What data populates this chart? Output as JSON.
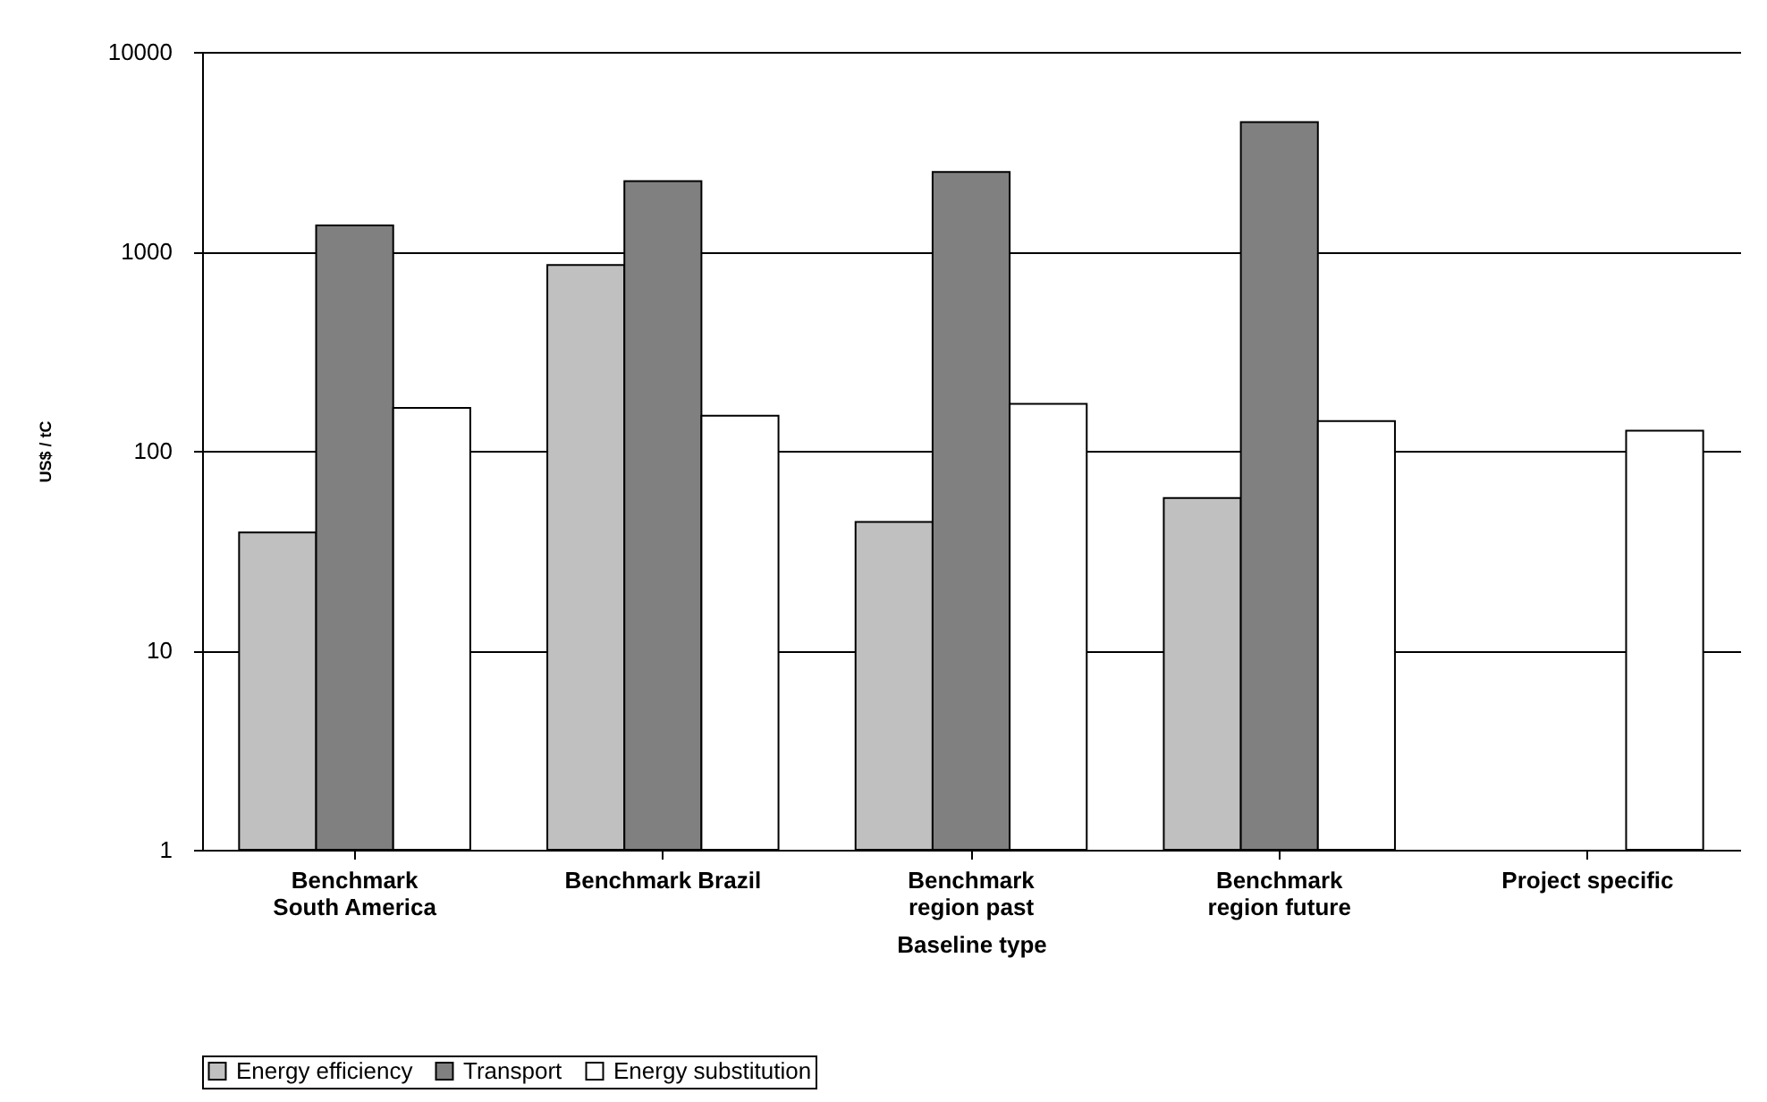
{
  "chart_data": {
    "type": "bar",
    "xlabel": "Baseline type",
    "ylabel": "US$ / tC",
    "categories": [
      "Benchmark\nSouth America",
      "Benchmark Brazil",
      "Benchmark\nregion past",
      "Benchmark\nregion future",
      "Project specific"
    ],
    "series": [
      {
        "name": "Energy efficiency",
        "color": "#c0c0c0",
        "values": [
          39,
          855,
          44,
          58,
          null
        ]
      },
      {
        "name": "Transport",
        "color": "#808080",
        "values": [
          1350,
          2250,
          2500,
          4450,
          null
        ]
      },
      {
        "name": "Energy substitution",
        "color": "#ffffff",
        "values": [
          164,
          150,
          172,
          141,
          126
        ]
      }
    ],
    "log": true,
    "ylim": [
      1,
      10000
    ],
    "yticks": [
      1,
      10,
      100,
      1000,
      10000
    ],
    "grid": "y",
    "legend": "bottom"
  }
}
